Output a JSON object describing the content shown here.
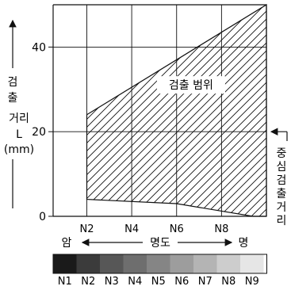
{
  "chart_data": {
    "type": "area",
    "ylabel": [
      "검출",
      "거리",
      "L",
      "(mm)"
    ],
    "x_axis_title": "명도",
    "x_dark_label": "암",
    "x_bright_label": "명",
    "x_ticks": [
      {
        "label": "N2",
        "value": 2
      },
      {
        "label": "N4",
        "value": 4
      },
      {
        "label": "N6",
        "value": 6
      },
      {
        "label": "N8",
        "value": 8
      }
    ],
    "y_ticks": [
      0,
      20,
      40
    ],
    "xlim": [
      0.5,
      10
    ],
    "ylim": [
      0,
      50
    ],
    "region_label": "검출 범위",
    "region_upper": [
      {
        "x": 2,
        "y": 24
      },
      {
        "x": 10,
        "y": 50
      }
    ],
    "region_lower": [
      {
        "x": 2,
        "y": 4
      },
      {
        "x": 6,
        "y": 3
      },
      {
        "x": 9.4,
        "y": 0
      }
    ],
    "center_distance": {
      "value": 20,
      "label": [
        "중심",
        "검출",
        "거리"
      ]
    },
    "grayscale": [
      {
        "label": "N1",
        "color": "#1a1a1a"
      },
      {
        "label": "N2",
        "color": "#3b3b3b"
      },
      {
        "label": "N3",
        "color": "#575757"
      },
      {
        "label": "N4",
        "color": "#6e6e6e"
      },
      {
        "label": "N5",
        "color": "#858585"
      },
      {
        "label": "N6",
        "color": "#9d9d9d"
      },
      {
        "label": "N7",
        "color": "#b4b4b4"
      },
      {
        "label": "N8",
        "color": "#cdcdcd"
      },
      {
        "label": "N9",
        "color": "#e6e6e6"
      }
    ],
    "grid": true
  }
}
